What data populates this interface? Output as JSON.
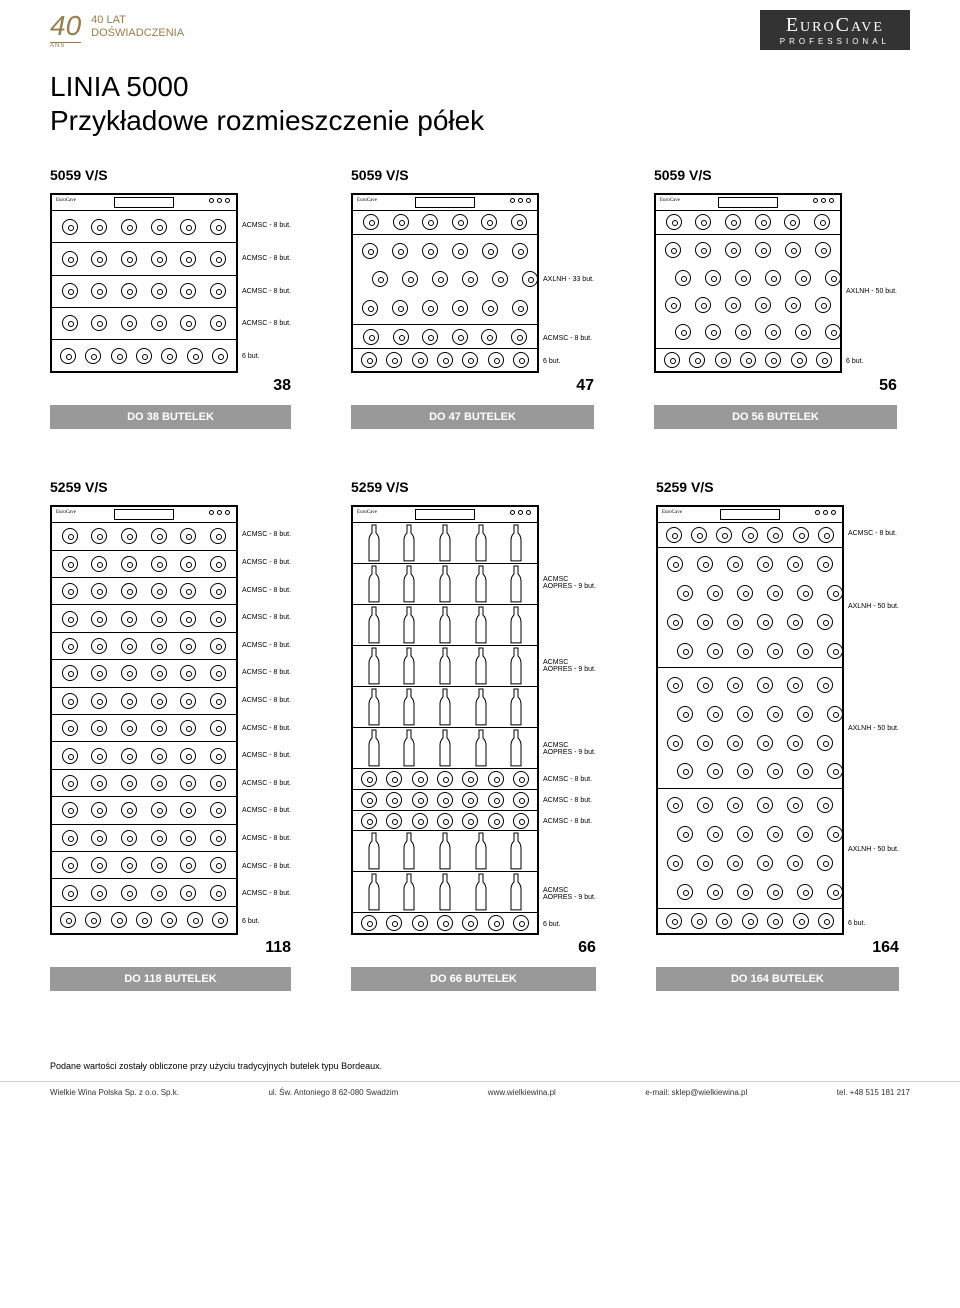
{
  "brand": {
    "name": "EuroCave",
    "sub": "PROFESSIONAL"
  },
  "header_left": {
    "num": "40",
    "sub": "ANS",
    "line1": "40 LAT",
    "line2": "DOŚWIADCZENIA"
  },
  "title_line1": "LINIA 5000",
  "title_line2": "Przykładowe rozmieszczenie półek",
  "footnote": "Podane wartości zostały obliczone przy użyciu tradycyjnych butelek typu Bordeaux.",
  "footer": {
    "company": "Wielkie Wina Polska Sp. z o.o. Sp.k.",
    "addr": "ul. Św. Antoniego 8  62-080 Swadzim",
    "web": "www.wielkiewina.pl",
    "email": "e-mail: sklep@wielkiewina.pl",
    "tel": "tel. +48 515 181 217"
  },
  "row1": [
    {
      "model": "5059 V/S",
      "size": "short",
      "count": 38,
      "total": "DO 38 BUTELEK",
      "shelves": [
        {
          "type": "circles",
          "n": 6,
          "label": "ACMSC - 8 but."
        },
        {
          "type": "circles",
          "n": 6,
          "label": "ACMSC - 8 but."
        },
        {
          "type": "circles",
          "n": 6,
          "label": "ACMSC - 8 but."
        },
        {
          "type": "circles",
          "n": 6,
          "label": "ACMSC - 8 but."
        },
        {
          "type": "circles",
          "n": 7,
          "label": "6 but."
        }
      ]
    },
    {
      "model": "5059 V/S",
      "size": "short",
      "count": 47,
      "total": "DO 47 BUTELEK",
      "shelves": [
        {
          "type": "circles",
          "n": 6,
          "label": ""
        },
        {
          "type": "stack",
          "rows": 3,
          "per": 6,
          "label": "AXLNH - 33 but."
        },
        {
          "type": "circles",
          "n": 6,
          "label": "ACMSC - 8 but."
        },
        {
          "type": "circles",
          "n": 7,
          "label": "6 but."
        }
      ]
    },
    {
      "model": "5059 V/S",
      "size": "short",
      "count": 56,
      "total": "DO 56 BUTELEK",
      "shelves": [
        {
          "type": "circles",
          "n": 6,
          "label": ""
        },
        {
          "type": "stack",
          "rows": 4,
          "per": 6,
          "label": "AXLNH - 50 but."
        },
        {
          "type": "circles",
          "n": 7,
          "label": "6 but."
        }
      ]
    }
  ],
  "row2": [
    {
      "model": "5259 V/S",
      "size": "tall",
      "count": 118,
      "total": "DO 118 BUTELEK",
      "shelves": [
        {
          "type": "circles",
          "n": 6,
          "label": "ACMSC - 8 but."
        },
        {
          "type": "circles",
          "n": 6,
          "label": "ACMSC - 8 but."
        },
        {
          "type": "circles",
          "n": 6,
          "label": "ACMSC - 8 but."
        },
        {
          "type": "circles",
          "n": 6,
          "label": "ACMSC - 8 but."
        },
        {
          "type": "circles",
          "n": 6,
          "label": "ACMSC - 8 but."
        },
        {
          "type": "circles",
          "n": 6,
          "label": "ACMSC - 8 but."
        },
        {
          "type": "circles",
          "n": 6,
          "label": "ACMSC - 8 but."
        },
        {
          "type": "circles",
          "n": 6,
          "label": "ACMSC - 8 but."
        },
        {
          "type": "circles",
          "n": 6,
          "label": "ACMSC - 8 but."
        },
        {
          "type": "circles",
          "n": 6,
          "label": "ACMSC - 8 but."
        },
        {
          "type": "circles",
          "n": 6,
          "label": "ACMSC - 8 but."
        },
        {
          "type": "circles",
          "n": 6,
          "label": "ACMSC - 8 but."
        },
        {
          "type": "circles",
          "n": 6,
          "label": "ACMSC - 8 but."
        },
        {
          "type": "circles",
          "n": 6,
          "label": "ACMSC - 8 but."
        },
        {
          "type": "circles",
          "n": 7,
          "label": "6 but."
        }
      ]
    },
    {
      "model": "5259 V/S",
      "size": "tall",
      "count": 66,
      "total": "DO 66 BUTELEK",
      "shelves": [
        {
          "type": "standing",
          "n": 5,
          "label": ""
        },
        {
          "type": "standing",
          "n": 5,
          "label": "ACMSC\nAOPRES - 9 but."
        },
        {
          "type": "standing",
          "n": 5,
          "label": ""
        },
        {
          "type": "standing",
          "n": 5,
          "label": "ACMSC\nAOPRES - 9 but."
        },
        {
          "type": "standing",
          "n": 5,
          "label": ""
        },
        {
          "type": "standing",
          "n": 5,
          "label": "ACMSC\nAOPRES - 9 but."
        },
        {
          "type": "circles",
          "n": 7,
          "label": "ACMSC - 8 but."
        },
        {
          "type": "circles",
          "n": 7,
          "label": "ACMSC - 8 but."
        },
        {
          "type": "circles",
          "n": 7,
          "label": "ACMSC - 8 but."
        },
        {
          "type": "standing",
          "n": 5,
          "label": ""
        },
        {
          "type": "standing",
          "n": 5,
          "label": "ACMSC\nAOPRES - 9 but."
        },
        {
          "type": "circles",
          "n": 7,
          "label": "6 but."
        }
      ]
    },
    {
      "model": "5259 V/S",
      "size": "tall",
      "count": 164,
      "total": "DO 164 BUTELEK",
      "shelves": [
        {
          "type": "circles",
          "n": 7,
          "label": "ACMSC - 8 but."
        },
        {
          "type": "stack",
          "rows": 4,
          "per": 6,
          "label": "AXLNH - 50 but."
        },
        {
          "type": "stack",
          "rows": 4,
          "per": 6,
          "label": "AXLNH - 50 but."
        },
        {
          "type": "stack",
          "rows": 4,
          "per": 6,
          "label": "AXLNH - 50 but."
        },
        {
          "type": "circles",
          "n": 7,
          "label": "6 but."
        }
      ]
    }
  ]
}
